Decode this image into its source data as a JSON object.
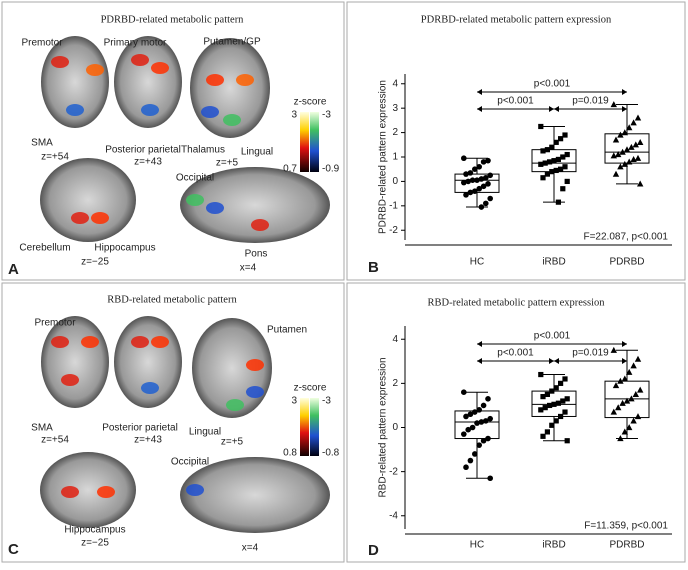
{
  "panels": [
    {
      "letter": "A",
      "title": "PDRBD-related metabolic pattern",
      "labels": [
        "Premotor",
        "Primary motor",
        "Putamen/GP",
        "SMA",
        "z=+54",
        "Posterior parietal",
        "z=+43",
        "Thalamus",
        "Lingual",
        "z=+5",
        "Cerebellum",
        "Hippocampus",
        "z=−25",
        "Occipital",
        "Pons",
        "x=4"
      ],
      "colorbar": {
        "title": "z-score",
        "pos_max": 3,
        "pos_min": 0.7,
        "neg_max": -3,
        "neg_min": -0.9
      }
    },
    {
      "letter": "C",
      "title": "RBD-related metabolic pattern",
      "labels": [
        "Premotor",
        "Putamen",
        "SMA",
        "z=+54",
        "Posterior parietal",
        "z=+43",
        "Lingual",
        "z=+5",
        "Hippocampus",
        "z=−25",
        "Occipital",
        "x=4"
      ],
      "colorbar": {
        "title": "z-score",
        "pos_max": 3,
        "pos_min": 0.8,
        "neg_max": -3,
        "neg_min": -0.8
      }
    }
  ],
  "chart_data": [
    {
      "type": "box",
      "letter": "B",
      "title": "PDRBD-related metabolic pattern expression",
      "ylabel": "PDRBD-related pattern expression",
      "categories": [
        "HC",
        "iRBD",
        "PDRBD"
      ],
      "ylim": [
        -2.4,
        4.4
      ],
      "yticks": [
        -2,
        -1,
        0,
        1,
        2,
        3,
        4
      ],
      "boxes": [
        {
          "whislo": -1.05,
          "q1": -0.45,
          "med": 0.05,
          "q3": 0.3,
          "whishi": 0.95
        },
        {
          "whislo": -0.85,
          "q1": 0.4,
          "med": 0.75,
          "q3": 1.3,
          "whishi": 2.25
        },
        {
          "whislo": -0.1,
          "q1": 0.75,
          "med": 1.2,
          "q3": 1.95,
          "whishi": 3.15
        }
      ],
      "points": [
        [
          0.95,
          0.85,
          0.8,
          0.6,
          0.5,
          0.35,
          0.3,
          0.25,
          0.15,
          0.1,
          0.05,
          0.05,
          0,
          -0.05,
          -0.1,
          -0.2,
          -0.3,
          -0.4,
          -0.45,
          -0.55,
          -0.7,
          -0.9,
          -1.05
        ],
        [
          2.25,
          1.9,
          1.75,
          1.6,
          1.4,
          1.3,
          1.25,
          1.1,
          1.0,
          0.9,
          0.85,
          0.8,
          0.75,
          0.7,
          0.6,
          0.5,
          0.45,
          0.4,
          0.3,
          0.15,
          0,
          -0.3,
          -0.85
        ],
        [
          3.15,
          2.6,
          2.4,
          2.2,
          2.0,
          1.9,
          1.7,
          1.6,
          1.5,
          1.4,
          1.3,
          1.2,
          1.1,
          1.05,
          0.95,
          0.9,
          0.8,
          0.7,
          0.6,
          0.3,
          -0.1
        ]
      ],
      "comparisons": [
        "p<0.001",
        "p<0.001",
        "p=0.019"
      ],
      "stat": "F=22.087, p<0.001"
    },
    {
      "type": "box",
      "letter": "D",
      "title": "RBD-related metabolic pattern expression",
      "ylabel": "RBD-related pattern expression",
      "categories": [
        "HC",
        "iRBD",
        "PDRBD"
      ],
      "ylim": [
        -4.6,
        4.6
      ],
      "yticks": [
        -4,
        -2,
        0,
        2,
        4
      ],
      "boxes": [
        {
          "whislo": -2.3,
          "q1": -0.5,
          "med": 0.25,
          "q3": 0.75,
          "whishi": 1.6
        },
        {
          "whislo": -0.6,
          "q1": 0.5,
          "med": 1.05,
          "q3": 1.65,
          "whishi": 2.4
        },
        {
          "whislo": -0.5,
          "q1": 0.45,
          "med": 1.3,
          "q3": 2.1,
          "whishi": 3.5
        }
      ],
      "points": [
        [
          1.6,
          1.3,
          1.0,
          0.8,
          0.7,
          0.6,
          0.5,
          0.4,
          0.3,
          0.25,
          0.2,
          0,
          -0.1,
          -0.3,
          -0.5,
          -0.6,
          -0.8,
          -1.2,
          -1.5,
          -1.8,
          -2.3
        ],
        [
          2.4,
          2.2,
          2.0,
          1.8,
          1.65,
          1.5,
          1.4,
          1.3,
          1.2,
          1.1,
          1.05,
          1.0,
          0.9,
          0.8,
          0.7,
          0.5,
          0.3,
          0.1,
          -0.2,
          -0.4,
          -0.6
        ],
        [
          3.5,
          3.1,
          2.8,
          2.5,
          2.2,
          2.1,
          1.9,
          1.7,
          1.5,
          1.3,
          1.2,
          1.1,
          0.9,
          0.7,
          0.5,
          0.3,
          0,
          -0.2,
          -0.5
        ]
      ],
      "comparisons": [
        "p<0.001",
        "p<0.001",
        "p=0.019"
      ],
      "stat": "F=11.359, p<0.001"
    }
  ]
}
